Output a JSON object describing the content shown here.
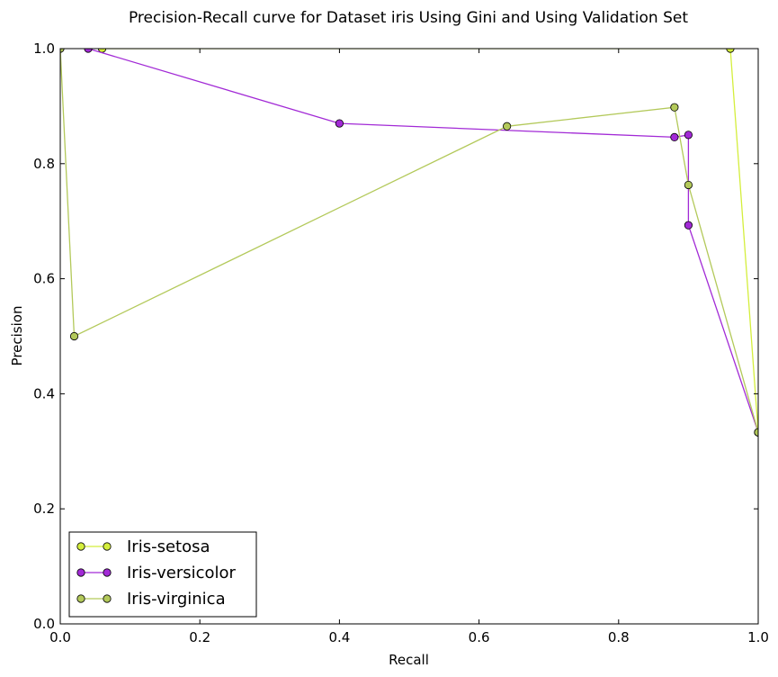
{
  "chart_data": {
    "type": "line",
    "title": "Precision-Recall curve for Dataset iris Using Gini and Using Validation Set",
    "xlabel": "Recall",
    "ylabel": "Precision",
    "xlim": [
      0.0,
      1.0
    ],
    "ylim": [
      0.0,
      1.0
    ],
    "xticks": [
      "0.0",
      "0.2",
      "0.4",
      "0.6",
      "0.8",
      "1.0"
    ],
    "yticks": [
      "0.0",
      "0.2",
      "0.4",
      "0.6",
      "0.8",
      "1.0"
    ],
    "grid": false,
    "legend_position": "lower-left",
    "series": [
      {
        "name": "Iris-setosa",
        "color": "#d4ee3c",
        "points": [
          [
            0.06,
            1.0
          ],
          [
            0.96,
            1.0
          ],
          [
            1.0,
            0.333
          ]
        ]
      },
      {
        "name": "Iris-versicolor",
        "color": "#a22ad6",
        "points": [
          [
            0.04,
            1.0
          ],
          [
            0.4,
            0.87
          ],
          [
            0.88,
            0.846
          ],
          [
            0.9,
            0.85
          ],
          [
            0.9,
            0.693
          ],
          [
            1.0,
            0.333
          ]
        ]
      },
      {
        "name": "Iris-virginica",
        "color": "#b3c95a",
        "points": [
          [
            0.0,
            1.0
          ],
          [
            0.02,
            0.5
          ],
          [
            0.64,
            0.865
          ],
          [
            0.88,
            0.898
          ],
          [
            0.9,
            0.763
          ],
          [
            1.0,
            0.333
          ]
        ]
      }
    ]
  }
}
